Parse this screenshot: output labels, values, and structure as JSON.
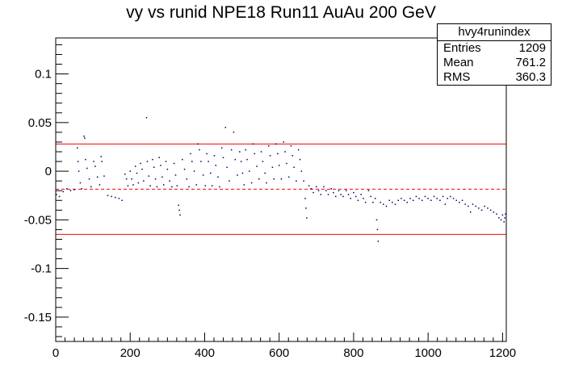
{
  "chart_data": {
    "type": "scatter",
    "title": "vy vs runid NPE18 Run11 AuAu 200 GeV",
    "xlabel": "",
    "ylabel": "",
    "xlim": [
      0,
      1210
    ],
    "ylim": [
      -0.175,
      0.137
    ],
    "x_ticks": [
      0,
      200,
      400,
      600,
      800,
      1000,
      1200
    ],
    "x_tick_labels": [
      "0",
      "200",
      "400",
      "600",
      "800",
      "1000",
      "1200"
    ],
    "y_ticks": [
      0.1,
      0.05,
      0,
      -0.05,
      -0.1,
      -0.15
    ],
    "y_tick_labels": [
      "0.1",
      "0.05",
      "0",
      "-0.05",
      "-0.1",
      "-0.15"
    ],
    "grid": false,
    "marker_color": "#000066",
    "lines": [
      {
        "y": 0.028,
        "style": "solid",
        "color": "#ff0000"
      },
      {
        "y": -0.0185,
        "style": "dashed",
        "color": "#ff0000"
      },
      {
        "y": -0.065,
        "style": "solid",
        "color": "#ff0000"
      }
    ],
    "series": [
      {
        "points": [
          [
            2,
            -0.024
          ],
          [
            10,
            -0.026
          ],
          [
            20,
            -0.021
          ],
          [
            30,
            -0.018
          ],
          [
            40,
            -0.02
          ],
          [
            50,
            -0.019
          ],
          [
            58,
            0.024
          ],
          [
            60,
            0.01
          ],
          [
            62,
            0.0
          ],
          [
            66,
            -0.012
          ],
          [
            70,
            -0.018
          ],
          [
            76,
            0.036
          ],
          [
            78,
            0.034
          ],
          [
            80,
            0.012
          ],
          [
            84,
            0.003
          ],
          [
            90,
            -0.008
          ],
          [
            95,
            -0.016
          ],
          [
            102,
            0.01
          ],
          [
            106,
            0.005
          ],
          [
            112,
            -0.006
          ],
          [
            118,
            -0.014
          ],
          [
            122,
            0.015
          ],
          [
            124,
            0.01
          ],
          [
            130,
            -0.005
          ],
          [
            140,
            -0.025
          ],
          [
            150,
            -0.026
          ],
          [
            160,
            -0.027
          ],
          [
            170,
            -0.028
          ],
          [
            178,
            -0.03
          ],
          [
            186,
            -0.003
          ],
          [
            190,
            -0.008
          ],
          [
            194,
            -0.015
          ],
          [
            200,
            0.0
          ],
          [
            204,
            -0.008
          ],
          [
            208,
            -0.014
          ],
          [
            214,
            0.005
          ],
          [
            218,
            -0.002
          ],
          [
            222,
            -0.012
          ],
          [
            228,
            0.008
          ],
          [
            232,
            0.002
          ],
          [
            236,
            -0.01
          ],
          [
            244,
            0.055
          ],
          [
            246,
            0.01
          ],
          [
            250,
            -0.005
          ],
          [
            254,
            -0.015
          ],
          [
            260,
            0.012
          ],
          [
            264,
            0.004
          ],
          [
            268,
            -0.008
          ],
          [
            272,
            -0.016
          ],
          [
            278,
            0.014
          ],
          [
            282,
            0.006
          ],
          [
            286,
            -0.006
          ],
          [
            290,
            -0.014
          ],
          [
            296,
            0.01
          ],
          [
            300,
            0.002
          ],
          [
            306,
            -0.01
          ],
          [
            312,
            -0.016
          ],
          [
            318,
            0.008
          ],
          [
            322,
            -0.004
          ],
          [
            326,
            -0.015
          ],
          [
            330,
            -0.035
          ],
          [
            332,
            -0.04
          ],
          [
            334,
            -0.045
          ],
          [
            340,
            0.012
          ],
          [
            346,
            0.002
          ],
          [
            352,
            -0.008
          ],
          [
            358,
            -0.016
          ],
          [
            362,
            0.018
          ],
          [
            366,
            0.01
          ],
          [
            372,
            0.0
          ],
          [
            378,
            -0.014
          ],
          [
            382,
            0.028
          ],
          [
            386,
            0.022
          ],
          [
            390,
            0.01
          ],
          [
            396,
            -0.004
          ],
          [
            402,
            -0.015
          ],
          [
            406,
            0.018
          ],
          [
            410,
            0.01
          ],
          [
            416,
            -0.002
          ],
          [
            420,
            -0.015
          ],
          [
            426,
            0.016
          ],
          [
            430,
            0.006
          ],
          [
            436,
            -0.006
          ],
          [
            440,
            -0.016
          ],
          [
            446,
            0.024
          ],
          [
            450,
            0.014
          ],
          [
            456,
            0.045
          ],
          [
            460,
            0.004
          ],
          [
            466,
            -0.01
          ],
          [
            472,
            0.022
          ],
          [
            478,
            0.04
          ],
          [
            482,
            0.012
          ],
          [
            488,
            -0.004
          ],
          [
            494,
            0.02
          ],
          [
            498,
            0.01
          ],
          [
            502,
            -0.002
          ],
          [
            506,
            -0.014
          ],
          [
            510,
            0.022
          ],
          [
            514,
            0.012
          ],
          [
            520,
            0.0
          ],
          [
            526,
            -0.012
          ],
          [
            530,
            0.028
          ],
          [
            534,
            0.018
          ],
          [
            540,
            0.005
          ],
          [
            546,
            -0.008
          ],
          [
            552,
            0.02
          ],
          [
            556,
            0.01
          ],
          [
            562,
            -0.002
          ],
          [
            566,
            -0.012
          ],
          [
            572,
            0.026
          ],
          [
            576,
            0.016
          ],
          [
            582,
            0.004
          ],
          [
            586,
            -0.008
          ],
          [
            592,
            0.028
          ],
          [
            596,
            0.018
          ],
          [
            600,
            0.006
          ],
          [
            606,
            -0.008
          ],
          [
            612,
            0.03
          ],
          [
            616,
            0.02
          ],
          [
            620,
            0.008
          ],
          [
            626,
            -0.006
          ],
          [
            632,
            0.026
          ],
          [
            636,
            0.016
          ],
          [
            640,
            0.004
          ],
          [
            646,
            -0.01
          ],
          [
            652,
            0.022
          ],
          [
            656,
            0.012
          ],
          [
            660,
            0.0
          ],
          [
            666,
            -0.01
          ],
          [
            670,
            -0.028
          ],
          [
            672,
            -0.038
          ],
          [
            674,
            -0.048
          ],
          [
            680,
            -0.015
          ],
          [
            686,
            -0.018
          ],
          [
            692,
            -0.022
          ],
          [
            700,
            -0.016
          ],
          [
            706,
            -0.02
          ],
          [
            712,
            -0.024
          ],
          [
            720,
            -0.016
          ],
          [
            726,
            -0.02
          ],
          [
            732,
            -0.024
          ],
          [
            740,
            -0.018
          ],
          [
            746,
            -0.022
          ],
          [
            752,
            -0.026
          ],
          [
            760,
            -0.02
          ],
          [
            766,
            -0.024
          ],
          [
            772,
            -0.026
          ],
          [
            780,
            -0.02
          ],
          [
            786,
            -0.024
          ],
          [
            792,
            -0.028
          ],
          [
            800,
            -0.022
          ],
          [
            806,
            -0.026
          ],
          [
            812,
            -0.03
          ],
          [
            820,
            -0.024
          ],
          [
            826,
            -0.028
          ],
          [
            832,
            -0.032
          ],
          [
            840,
            -0.02
          ],
          [
            846,
            -0.026
          ],
          [
            852,
            -0.032
          ],
          [
            858,
            -0.028
          ],
          [
            862,
            -0.05
          ],
          [
            864,
            -0.06
          ],
          [
            866,
            -0.072
          ],
          [
            872,
            -0.032
          ],
          [
            880,
            -0.034
          ],
          [
            888,
            -0.036
          ],
          [
            896,
            -0.03
          ],
          [
            904,
            -0.032
          ],
          [
            912,
            -0.034
          ],
          [
            920,
            -0.03
          ],
          [
            928,
            -0.028
          ],
          [
            936,
            -0.03
          ],
          [
            944,
            -0.032
          ],
          [
            952,
            -0.028
          ],
          [
            960,
            -0.03
          ],
          [
            968,
            -0.026
          ],
          [
            976,
            -0.028
          ],
          [
            984,
            -0.03
          ],
          [
            992,
            -0.026
          ],
          [
            1000,
            -0.028
          ],
          [
            1008,
            -0.03
          ],
          [
            1016,
            -0.026
          ],
          [
            1024,
            -0.028
          ],
          [
            1032,
            -0.03
          ],
          [
            1040,
            -0.026
          ],
          [
            1046,
            -0.034
          ],
          [
            1052,
            -0.028
          ],
          [
            1060,
            -0.026
          ],
          [
            1068,
            -0.028
          ],
          [
            1076,
            -0.03
          ],
          [
            1084,
            -0.032
          ],
          [
            1092,
            -0.03
          ],
          [
            1100,
            -0.034
          ],
          [
            1108,
            -0.036
          ],
          [
            1114,
            -0.042
          ],
          [
            1120,
            -0.034
          ],
          [
            1128,
            -0.036
          ],
          [
            1136,
            -0.038
          ],
          [
            1144,
            -0.04
          ],
          [
            1152,
            -0.036
          ],
          [
            1160,
            -0.038
          ],
          [
            1168,
            -0.04
          ],
          [
            1176,
            -0.042
          ],
          [
            1184,
            -0.044
          ],
          [
            1190,
            -0.048
          ],
          [
            1196,
            -0.05
          ],
          [
            1200,
            -0.045
          ],
          [
            1204,
            -0.052
          ],
          [
            1206,
            -0.048
          ],
          [
            1208,
            -0.044
          ]
        ]
      }
    ]
  },
  "stats": {
    "name": "hvy4runindex",
    "entries_label": "Entries",
    "entries_value": "1209",
    "mean_label": "Mean",
    "mean_value": "761.2",
    "rms_label": "RMS",
    "rms_value": "360.3"
  }
}
